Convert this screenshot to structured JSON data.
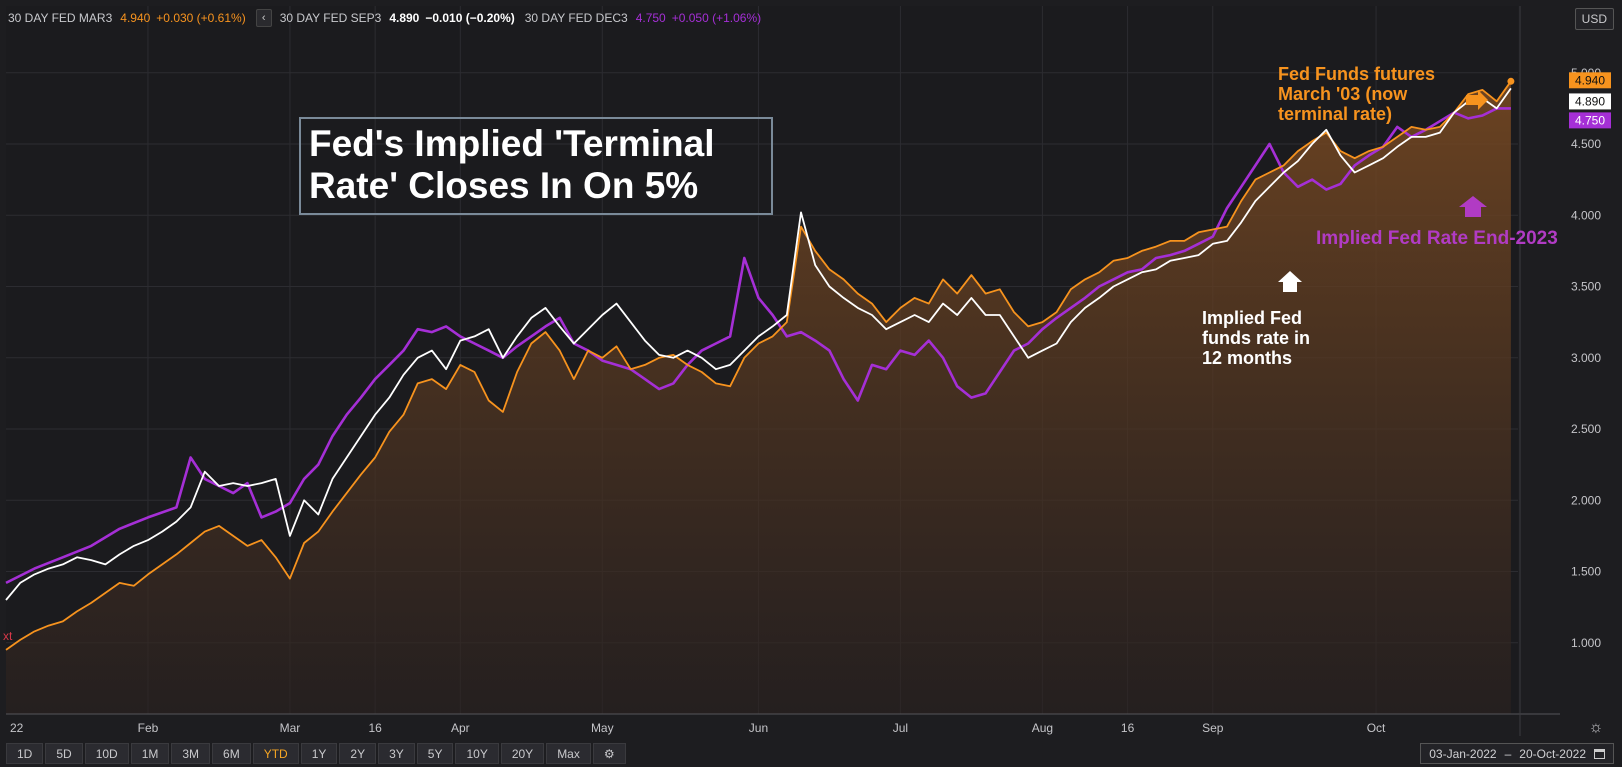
{
  "legend": [
    {
      "name": "30 DAY FED MAR3",
      "price": "4.940",
      "change": "+0.030 (+0.61%)",
      "color": "#f7931e"
    },
    {
      "name": "30 DAY FED SEP3",
      "price": "4.890",
      "change": "−0.010 (−0.20%)",
      "color": "#ffffff"
    },
    {
      "name": "30 DAY FED DEC3",
      "price": "4.750",
      "change": "+0.050 (+1.06%)",
      "color": "#a52fd6"
    }
  ],
  "legend_nav": "‹",
  "currency": "USD",
  "headline": "Fed's Implied 'Terminal Rate' Closes In On 5%",
  "annotations": {
    "fed_funds_futures": "Fed Funds futures March '03 (now terminal rate)",
    "implied_end_2023": "Implied Fed Rate End-2023",
    "implied_12m": "Implied Fed funds rate in 12 months",
    "stray_text": "xt"
  },
  "range_buttons": [
    "1D",
    "5D",
    "10D",
    "1M",
    "3M",
    "6M",
    "YTD",
    "1Y",
    "2Y",
    "3Y",
    "5Y",
    "10Y",
    "20Y",
    "Max"
  ],
  "active_range": "YTD",
  "date_range": {
    "start": "03-Jan-2022",
    "sep": "–",
    "end": "20-Oct-2022"
  },
  "chart_data": {
    "type": "area",
    "x_ticks": [
      "22",
      "Feb",
      "Mar",
      "16",
      "Apr",
      "May",
      "Jun",
      "Jul",
      "Aug",
      "16",
      "Sep",
      "Oct"
    ],
    "x_tick_positions": [
      0,
      20,
      40,
      52,
      64,
      84,
      106,
      126,
      146,
      158,
      170,
      193
    ],
    "y_ticks": [
      "1.000",
      "1.500",
      "2.000",
      "2.500",
      "3.000",
      "3.500",
      "4.000",
      "4.500",
      "5.000"
    ],
    "ylim": [
      0.5,
      5.3
    ],
    "xlim": [
      0,
      213
    ],
    "last_labels": [
      "4.940",
      "4.890",
      "4.750"
    ],
    "series": [
      {
        "name": "30 DAY FED MAR3",
        "color": "#f7931e",
        "x": [
          0,
          2,
          4,
          6,
          8,
          10,
          12,
          14,
          16,
          18,
          20,
          22,
          24,
          26,
          28,
          30,
          32,
          34,
          36,
          38,
          40,
          42,
          44,
          46,
          48,
          50,
          52,
          54,
          56,
          58,
          60,
          62,
          64,
          66,
          68,
          70,
          72,
          74,
          76,
          78,
          80,
          82,
          84,
          86,
          88,
          90,
          92,
          94,
          96,
          98,
          100,
          102,
          104,
          106,
          108,
          110,
          112,
          114,
          116,
          118,
          120,
          122,
          124,
          126,
          128,
          130,
          132,
          134,
          136,
          138,
          140,
          142,
          144,
          146,
          148,
          150,
          152,
          154,
          156,
          158,
          160,
          162,
          164,
          166,
          168,
          170,
          172,
          174,
          176,
          178,
          180,
          182,
          184,
          186,
          188,
          190,
          192,
          194,
          196,
          198,
          200,
          202,
          204,
          206,
          208,
          210,
          212
        ],
        "y": [
          0.95,
          1.02,
          1.08,
          1.12,
          1.15,
          1.22,
          1.28,
          1.35,
          1.42,
          1.4,
          1.48,
          1.55,
          1.62,
          1.7,
          1.78,
          1.82,
          1.75,
          1.68,
          1.72,
          1.6,
          1.45,
          1.7,
          1.78,
          1.92,
          2.05,
          2.18,
          2.3,
          2.48,
          2.6,
          2.82,
          2.85,
          2.78,
          2.95,
          2.9,
          2.7,
          2.62,
          2.9,
          3.1,
          3.18,
          3.05,
          2.85,
          3.05,
          3.0,
          3.08,
          2.92,
          2.95,
          3.0,
          3.02,
          2.95,
          2.9,
          2.82,
          2.8,
          3.0,
          3.1,
          3.15,
          3.25,
          3.92,
          3.75,
          3.62,
          3.55,
          3.45,
          3.38,
          3.25,
          3.35,
          3.42,
          3.38,
          3.55,
          3.45,
          3.58,
          3.45,
          3.48,
          3.32,
          3.22,
          3.25,
          3.32,
          3.48,
          3.55,
          3.6,
          3.68,
          3.7,
          3.75,
          3.78,
          3.82,
          3.82,
          3.88,
          3.9,
          3.92,
          4.1,
          4.25,
          4.3,
          4.35,
          4.45,
          4.52,
          4.58,
          4.45,
          4.4,
          4.45,
          4.48,
          4.55,
          4.62,
          4.6,
          4.62,
          4.72,
          4.85,
          4.88,
          4.8,
          4.94
        ]
      },
      {
        "name": "30 DAY FED SEP3",
        "color": "#ffffff",
        "x": [
          0,
          2,
          4,
          6,
          8,
          10,
          12,
          14,
          16,
          18,
          20,
          22,
          24,
          26,
          28,
          30,
          32,
          34,
          36,
          38,
          40,
          42,
          44,
          46,
          48,
          50,
          52,
          54,
          56,
          58,
          60,
          62,
          64,
          66,
          68,
          70,
          72,
          74,
          76,
          78,
          80,
          82,
          84,
          86,
          88,
          90,
          92,
          94,
          96,
          98,
          100,
          102,
          104,
          106,
          108,
          110,
          112,
          114,
          116,
          118,
          120,
          122,
          124,
          126,
          128,
          130,
          132,
          134,
          136,
          138,
          140,
          142,
          144,
          146,
          148,
          150,
          152,
          154,
          156,
          158,
          160,
          162,
          164,
          166,
          168,
          170,
          172,
          174,
          176,
          178,
          180,
          182,
          184,
          186,
          188,
          190,
          192,
          194,
          196,
          198,
          200,
          202,
          204,
          206,
          208,
          210,
          212
        ],
        "y": [
          1.3,
          1.42,
          1.48,
          1.52,
          1.55,
          1.6,
          1.58,
          1.55,
          1.62,
          1.68,
          1.72,
          1.78,
          1.85,
          1.95,
          2.2,
          2.1,
          2.12,
          2.1,
          2.12,
          2.15,
          1.75,
          2.0,
          1.9,
          2.15,
          2.3,
          2.45,
          2.6,
          2.72,
          2.88,
          3.0,
          3.05,
          2.92,
          3.12,
          3.15,
          3.2,
          3.0,
          3.15,
          3.28,
          3.35,
          3.22,
          3.1,
          3.2,
          3.3,
          3.38,
          3.25,
          3.12,
          3.02,
          3.0,
          3.05,
          3.0,
          2.92,
          2.95,
          3.05,
          3.15,
          3.22,
          3.3,
          4.02,
          3.65,
          3.5,
          3.42,
          3.35,
          3.3,
          3.2,
          3.25,
          3.3,
          3.25,
          3.38,
          3.3,
          3.42,
          3.3,
          3.3,
          3.15,
          3.0,
          3.05,
          3.1,
          3.25,
          3.35,
          3.42,
          3.5,
          3.55,
          3.6,
          3.62,
          3.68,
          3.7,
          3.72,
          3.8,
          3.82,
          3.95,
          4.1,
          4.2,
          4.3,
          4.38,
          4.5,
          4.6,
          4.42,
          4.3,
          4.35,
          4.4,
          4.48,
          4.55,
          4.55,
          4.58,
          4.72,
          4.8,
          4.82,
          4.75,
          4.89
        ]
      },
      {
        "name": "30 DAY FED DEC3",
        "color": "#a52fd6",
        "x": [
          0,
          4,
          8,
          12,
          16,
          20,
          24,
          26,
          28,
          30,
          32,
          34,
          36,
          38,
          40,
          42,
          44,
          46,
          48,
          50,
          52,
          54,
          56,
          58,
          60,
          62,
          64,
          66,
          68,
          70,
          72,
          74,
          76,
          78,
          80,
          82,
          84,
          86,
          88,
          90,
          92,
          94,
          96,
          98,
          100,
          102,
          104,
          106,
          108,
          110,
          112,
          114,
          116,
          118,
          120,
          122,
          124,
          126,
          128,
          130,
          132,
          134,
          136,
          138,
          140,
          142,
          144,
          146,
          148,
          150,
          152,
          154,
          156,
          158,
          160,
          162,
          164,
          166,
          168,
          170,
          172,
          174,
          176,
          178,
          180,
          182,
          184,
          186,
          188,
          190,
          192,
          194,
          196,
          198,
          200,
          202,
          204,
          206,
          208,
          210,
          212
        ],
        "y": [
          1.42,
          1.52,
          1.6,
          1.68,
          1.8,
          1.88,
          1.95,
          2.3,
          2.15,
          2.1,
          2.05,
          2.12,
          1.88,
          1.92,
          1.98,
          2.15,
          2.25,
          2.45,
          2.6,
          2.72,
          2.85,
          2.95,
          3.05,
          3.2,
          3.18,
          3.22,
          3.15,
          3.1,
          3.05,
          3.0,
          3.08,
          3.15,
          3.22,
          3.28,
          3.1,
          3.05,
          2.98,
          2.95,
          2.92,
          2.85,
          2.78,
          2.82,
          2.95,
          3.05,
          3.1,
          3.15,
          3.7,
          3.42,
          3.3,
          3.15,
          3.18,
          3.12,
          3.05,
          2.85,
          2.7,
          2.95,
          2.92,
          3.05,
          3.02,
          3.12,
          3.0,
          2.8,
          2.72,
          2.75,
          2.9,
          3.05,
          3.1,
          3.2,
          3.28,
          3.35,
          3.42,
          3.5,
          3.55,
          3.6,
          3.62,
          3.7,
          3.72,
          3.75,
          3.8,
          3.85,
          4.05,
          4.2,
          4.35,
          4.5,
          4.3,
          4.2,
          4.25,
          4.18,
          4.22,
          4.35,
          4.42,
          4.48,
          4.62,
          4.55,
          4.6,
          4.66,
          4.72,
          4.68,
          4.7,
          4.75,
          4.75
        ]
      }
    ]
  }
}
